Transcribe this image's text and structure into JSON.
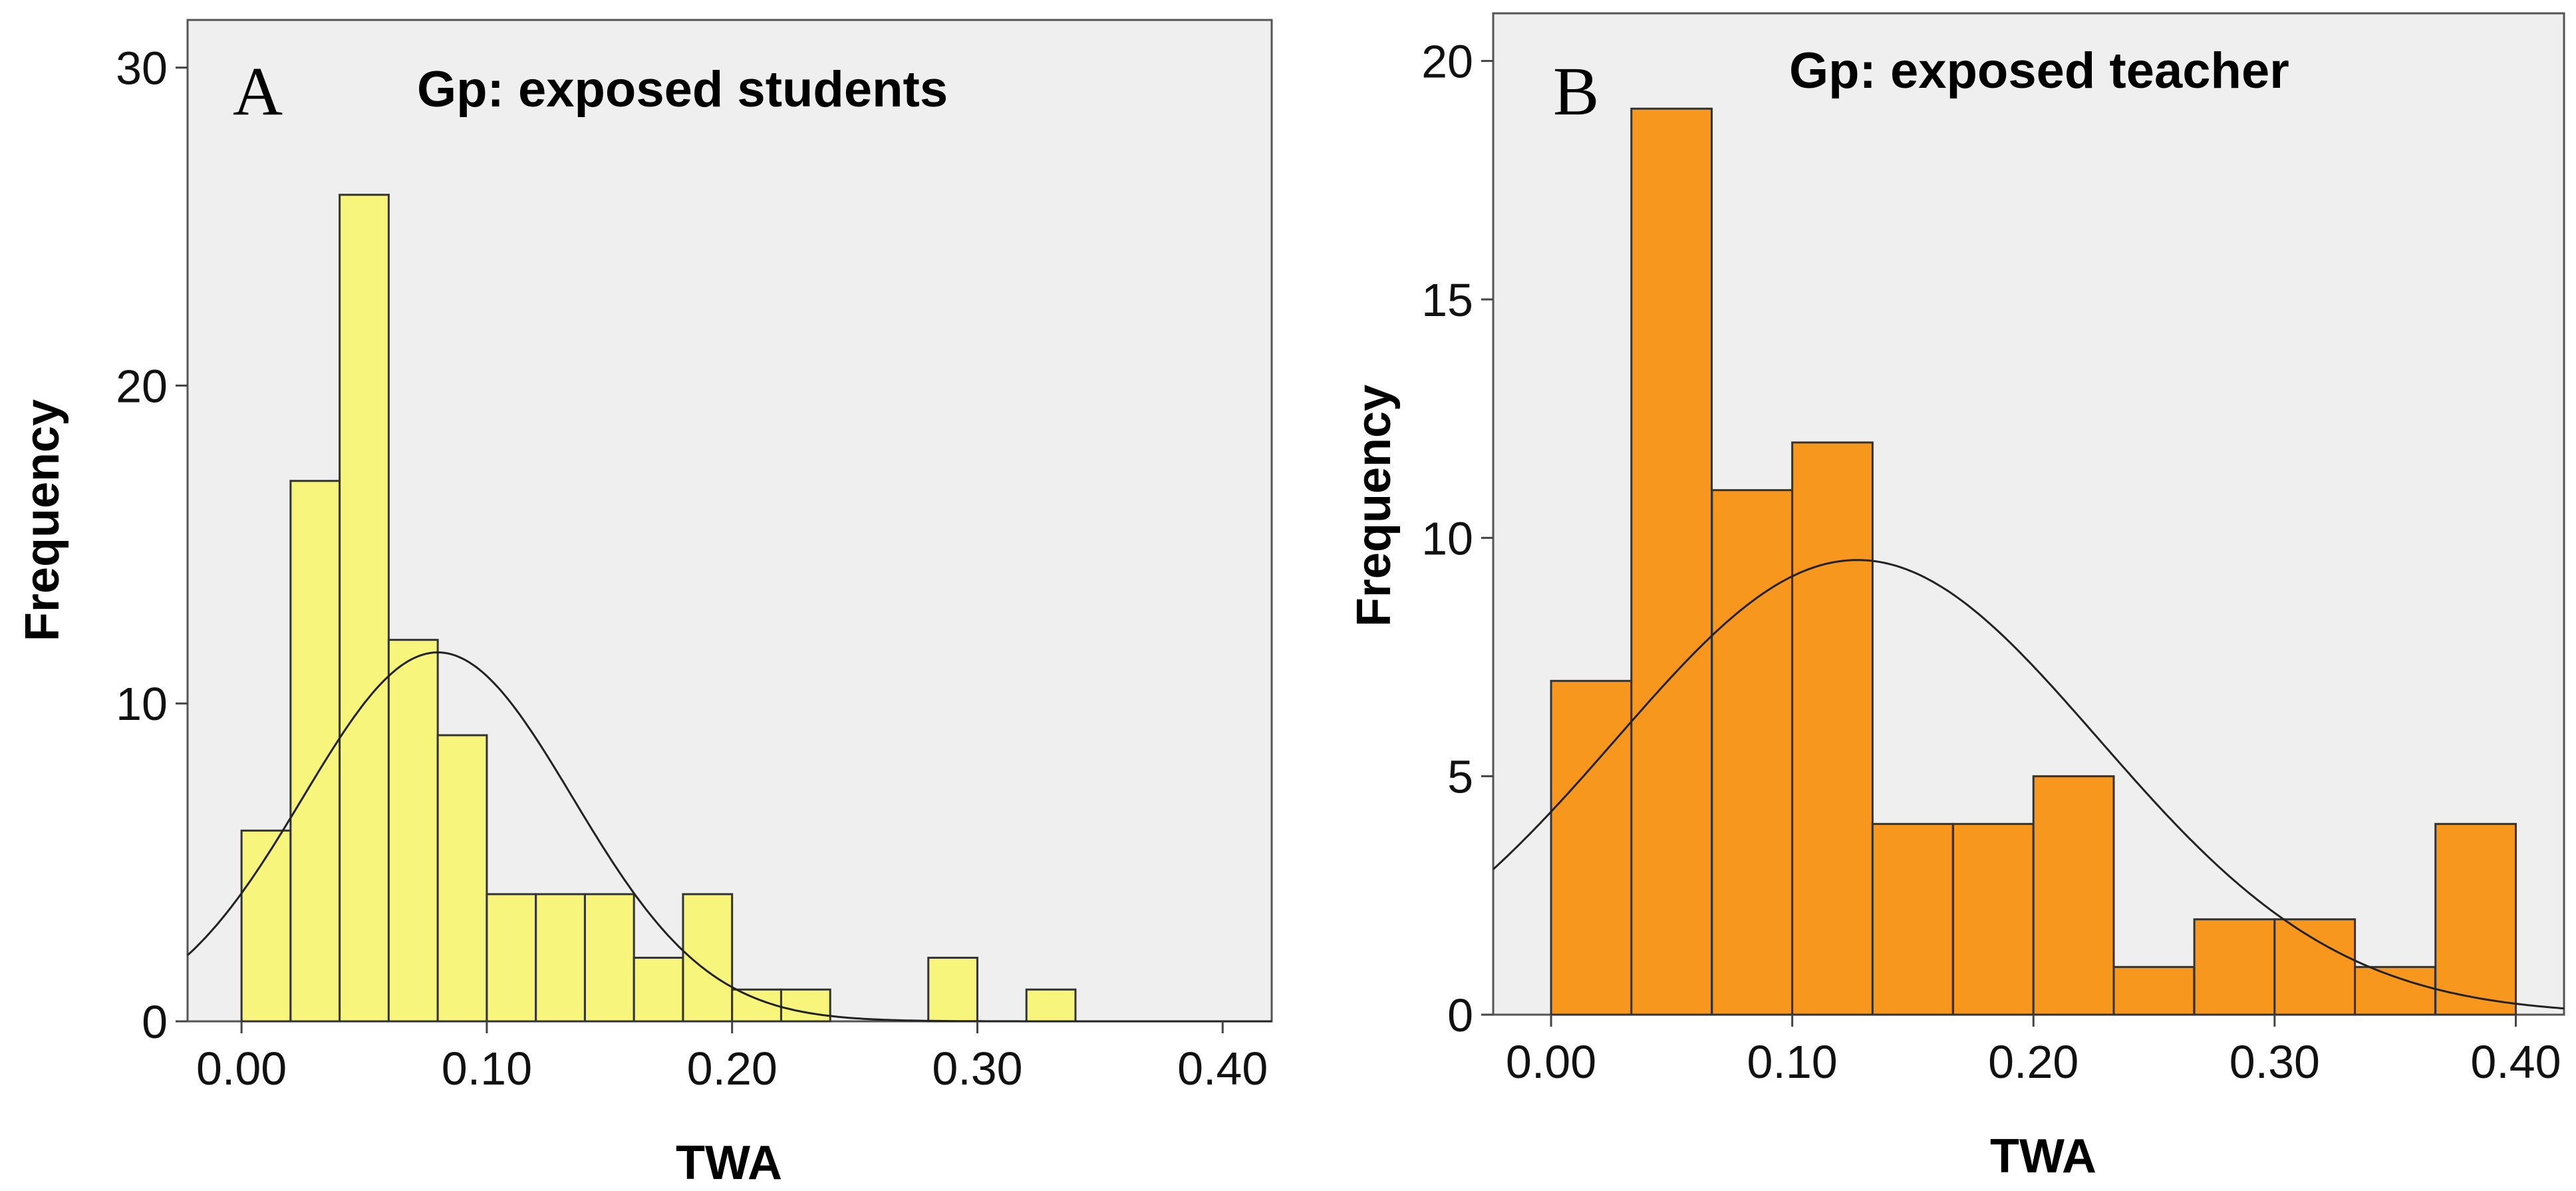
{
  "chart_data": [
    {
      "type": "bar",
      "panel_letter": "A",
      "title": "Gp: exposed students",
      "xlabel": "TWA",
      "ylabel": "Frequency",
      "bin_width": 0.02,
      "bins": [
        {
          "start": 0.0,
          "count": 6
        },
        {
          "start": 0.02,
          "count": 17
        },
        {
          "start": 0.04,
          "count": 26
        },
        {
          "start": 0.06,
          "count": 12
        },
        {
          "start": 0.08,
          "count": 9
        },
        {
          "start": 0.1,
          "count": 4
        },
        {
          "start": 0.12,
          "count": 4
        },
        {
          "start": 0.14,
          "count": 4
        },
        {
          "start": 0.16,
          "count": 2
        },
        {
          "start": 0.18,
          "count": 4
        },
        {
          "start": 0.2,
          "count": 1
        },
        {
          "start": 0.22,
          "count": 1
        },
        {
          "start": 0.28,
          "count": 2
        },
        {
          "start": 0.32,
          "count": 1
        }
      ],
      "normal_curve": {
        "mean": 0.08,
        "sd": 0.055,
        "scale": 1.6
      },
      "xlim": [
        -0.022,
        0.42
      ],
      "ylim": [
        0,
        31.5
      ],
      "xticks": [
        0.0,
        0.1,
        0.2,
        0.3,
        0.4
      ],
      "xtick_labels": [
        "0.00",
        "0.10",
        "0.20",
        "0.30",
        "0.40"
      ],
      "yticks": [
        0,
        10,
        20,
        30
      ],
      "ytick_labels": [
        "0",
        "10",
        "20",
        "30"
      ],
      "bar_color": "#f8f57c",
      "plot_bg": "#efefef"
    },
    {
      "type": "bar",
      "panel_letter": "B",
      "title": "Gp: exposed teacher",
      "xlabel": "TWA",
      "ylabel": "Frequency",
      "bin_width": 0.0333,
      "bins": [
        {
          "start": 0.0,
          "count": 7
        },
        {
          "start": 0.0333,
          "count": 19
        },
        {
          "start": 0.0667,
          "count": 11
        },
        {
          "start": 0.1,
          "count": 12
        },
        {
          "start": 0.1333,
          "count": 4
        },
        {
          "start": 0.1667,
          "count": 4
        },
        {
          "start": 0.2,
          "count": 5
        },
        {
          "start": 0.2333,
          "count": 1
        },
        {
          "start": 0.2667,
          "count": 2
        },
        {
          "start": 0.3,
          "count": 2
        },
        {
          "start": 0.3333,
          "count": 1
        },
        {
          "start": 0.3667,
          "count": 4
        }
      ],
      "normal_curve": {
        "mean": 0.127,
        "sd": 0.1,
        "scale": 2.39
      },
      "xlim": [
        -0.024,
        0.42
      ],
      "ylim": [
        0,
        21
      ],
      "xticks": [
        0.0,
        0.1,
        0.2,
        0.3,
        0.4
      ],
      "xtick_labels": [
        "0.00",
        "0.10",
        "0.20",
        "0.30",
        "0.40"
      ],
      "yticks": [
        0,
        5,
        10,
        15,
        20
      ],
      "ytick_labels": [
        "0",
        "5",
        "10",
        "15",
        "20"
      ],
      "bar_color": "#f7971e",
      "plot_bg": "#efefef"
    }
  ]
}
